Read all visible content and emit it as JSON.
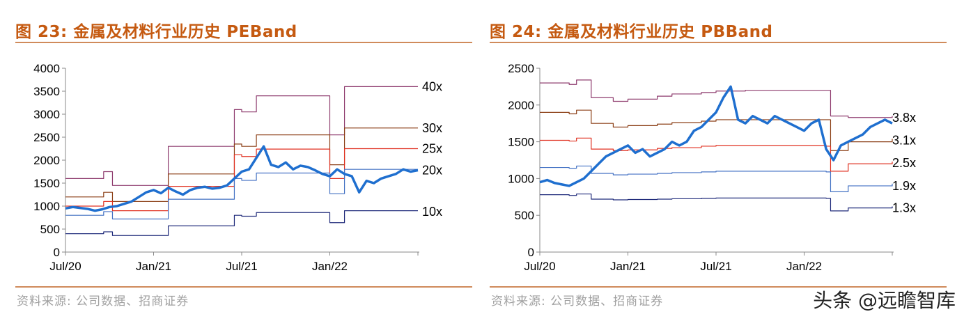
{
  "left": {
    "title": "图 23: 金属及材料行业历史 PEBand",
    "source": "资料来源: 公司数据、招商证券"
  },
  "right": {
    "title": "图 24: 金属及材料行业历史 PBBand",
    "source": "资料来源: 公司数据、招商证券"
  },
  "watermark": "头条 @远瞻智库",
  "chart_data": [
    {
      "type": "line",
      "title": "",
      "xlabel": "",
      "ylabel": "",
      "ylim": [
        0,
        4000
      ],
      "yticks": [
        0,
        500,
        1000,
        1500,
        2000,
        2500,
        3000,
        3500,
        4000
      ],
      "xticks": [
        "Jul/20",
        "Jan/21",
        "Jul/21",
        "Jan/22"
      ],
      "xlim": [
        0,
        24
      ],
      "grid": false,
      "series": [
        {
          "name": "40x",
          "color": "#8e3b6e",
          "width": 1.2,
          "x": [
            0,
            2.4,
            2.6,
            3.2,
            5.5,
            7,
            9,
            11,
            11.5,
            12,
            13,
            17.5,
            18,
            19,
            24
          ],
          "values": [
            1600,
            1600,
            1750,
            1450,
            1450,
            2300,
            2300,
            2300,
            3100,
            3050,
            3400,
            3400,
            2550,
            3600,
            3600
          ]
        },
        {
          "name": "30x",
          "color": "#8b3f16",
          "width": 1.2,
          "x": [
            0,
            2.4,
            2.6,
            3.2,
            5.5,
            7,
            9,
            11,
            11.5,
            12,
            13,
            17.5,
            18,
            19,
            24
          ],
          "values": [
            1200,
            1200,
            1300,
            1100,
            1100,
            1700,
            1700,
            1700,
            2350,
            2300,
            2550,
            2550,
            1900,
            2700,
            2700
          ]
        },
        {
          "name": "25x",
          "color": "#e03020",
          "width": 1.2,
          "x": [
            0,
            2.4,
            2.6,
            3.2,
            5.5,
            7,
            9,
            11,
            11.5,
            12,
            13,
            17.5,
            18,
            19,
            24
          ],
          "values": [
            1000,
            1000,
            1100,
            900,
            900,
            1430,
            1430,
            1430,
            2120,
            2080,
            2240,
            2240,
            1600,
            2250,
            2250
          ]
        },
        {
          "name": "20x",
          "color": "#4472c4",
          "width": 1.2,
          "x": [
            0,
            2.4,
            2.6,
            3.2,
            5.5,
            7,
            9,
            11,
            11.5,
            12,
            13,
            17.5,
            18,
            19,
            24
          ],
          "values": [
            800,
            800,
            880,
            720,
            720,
            1150,
            1150,
            1150,
            1600,
            1560,
            1720,
            1720,
            1270,
            1800,
            1800
          ]
        },
        {
          "name": "10x",
          "color": "#1f2a7a",
          "width": 1.2,
          "x": [
            0,
            2.4,
            2.6,
            3.2,
            5.5,
            7,
            9,
            11,
            11.5,
            12,
            13,
            17.5,
            18,
            19,
            24
          ],
          "values": [
            400,
            400,
            440,
            360,
            360,
            570,
            570,
            570,
            800,
            780,
            860,
            860,
            640,
            900,
            900
          ]
        },
        {
          "name": "",
          "color": "#1f6fcf",
          "width": 3.5,
          "x": [
            0,
            0.5,
            1,
            1.5,
            2,
            2.5,
            3,
            3.5,
            4,
            4.5,
            5,
            5.5,
            6,
            6.5,
            7,
            7.5,
            8,
            8.5,
            9,
            9.5,
            10,
            10.5,
            11,
            11.5,
            12,
            12.5,
            13,
            13.5,
            14,
            14.5,
            15,
            15.5,
            16,
            16.5,
            17,
            17.5,
            18,
            18.5,
            19,
            19.5,
            20,
            20.5,
            21,
            21.5,
            22,
            22.5,
            23,
            23.5,
            24
          ],
          "values": [
            950,
            980,
            960,
            940,
            900,
            930,
            980,
            1000,
            1050,
            1100,
            1200,
            1300,
            1350,
            1280,
            1400,
            1320,
            1250,
            1350,
            1400,
            1420,
            1380,
            1400,
            1450,
            1600,
            1750,
            1800,
            2050,
            2300,
            1900,
            1850,
            1950,
            1800,
            1880,
            1850,
            1780,
            1700,
            1650,
            1800,
            1700,
            1650,
            1300,
            1550,
            1500,
            1600,
            1650,
            1700,
            1800,
            1750,
            1780
          ]
        }
      ],
      "labels": [
        {
          "text": "40x",
          "y": 3600
        },
        {
          "text": "30x",
          "y": 2700
        },
        {
          "text": "25x",
          "y": 2250
        },
        {
          "text": "20x",
          "y": 1780
        },
        {
          "text": "10x",
          "y": 880
        }
      ]
    },
    {
      "type": "line",
      "title": "",
      "xlabel": "",
      "ylabel": "",
      "ylim": [
        0,
        2500
      ],
      "yticks": [
        0,
        500,
        1000,
        1500,
        2000,
        2500
      ],
      "xticks": [
        "Jul/20",
        "Jan/21",
        "Jul/21",
        "Jan/22"
      ],
      "xlim": [
        0,
        24
      ],
      "grid": false,
      "series": [
        {
          "name": "3.8x",
          "color": "#8e3b6e",
          "width": 1.2,
          "x": [
            0,
            2,
            2.5,
            3.5,
            5,
            6,
            8,
            9,
            11,
            12,
            14,
            16,
            19.5,
            19.8,
            21,
            24
          ],
          "values": [
            2300,
            2280,
            2340,
            2100,
            2050,
            2080,
            2120,
            2150,
            2170,
            2190,
            2200,
            2200,
            2200,
            1850,
            1830,
            1850
          ]
        },
        {
          "name": "3.1x",
          "color": "#8b3f16",
          "width": 1.2,
          "x": [
            0,
            2,
            2.5,
            3.5,
            5,
            6,
            8,
            9,
            11,
            12,
            14,
            16,
            19.5,
            19.8,
            21,
            24
          ],
          "values": [
            1900,
            1880,
            1930,
            1750,
            1700,
            1720,
            1740,
            1760,
            1780,
            1800,
            1800,
            1800,
            1800,
            1380,
            1500,
            1540
          ]
        },
        {
          "name": "2.5x",
          "color": "#e03020",
          "width": 1.2,
          "x": [
            0,
            2,
            2.5,
            3.5,
            5,
            6,
            8,
            9,
            11,
            12,
            14,
            16,
            19.5,
            19.8,
            21,
            24
          ],
          "values": [
            1520,
            1510,
            1550,
            1400,
            1380,
            1390,
            1410,
            1420,
            1440,
            1450,
            1450,
            1450,
            1440,
            1100,
            1200,
            1230
          ]
        },
        {
          "name": "1.9x",
          "color": "#4472c4",
          "width": 1.2,
          "x": [
            0,
            2,
            2.5,
            3.5,
            5,
            6,
            8,
            9,
            11,
            12,
            14,
            16,
            19.5,
            19.8,
            21,
            24
          ],
          "values": [
            1150,
            1140,
            1170,
            1070,
            1050,
            1060,
            1070,
            1080,
            1090,
            1100,
            1100,
            1100,
            1090,
            820,
            900,
            930
          ]
        },
        {
          "name": "1.3x",
          "color": "#1f2a7a",
          "width": 1.2,
          "x": [
            0,
            2,
            2.5,
            3.5,
            5,
            6,
            8,
            9,
            11,
            12,
            14,
            16,
            19.5,
            19.8,
            21,
            24
          ],
          "values": [
            780,
            770,
            790,
            720,
            710,
            715,
            720,
            725,
            730,
            735,
            735,
            735,
            730,
            560,
            600,
            620
          ]
        },
        {
          "name": "",
          "color": "#1f6fcf",
          "width": 3.5,
          "x": [
            0,
            0.5,
            1,
            1.5,
            2,
            2.5,
            3,
            3.5,
            4,
            4.5,
            5,
            5.5,
            6,
            6.5,
            7,
            7.5,
            8,
            8.5,
            9,
            9.5,
            10,
            10.5,
            11,
            11.5,
            12,
            12.5,
            13,
            13.5,
            14,
            14.5,
            15,
            15.5,
            16,
            16.5,
            17,
            17.5,
            18,
            18.5,
            19,
            19.5,
            20,
            20.5,
            21,
            21.5,
            22,
            22.5,
            23,
            23.5,
            24
          ],
          "values": [
            950,
            980,
            940,
            920,
            900,
            950,
            1000,
            1100,
            1200,
            1300,
            1350,
            1400,
            1450,
            1350,
            1400,
            1300,
            1350,
            1400,
            1500,
            1450,
            1500,
            1650,
            1700,
            1800,
            1900,
            2100,
            2250,
            1800,
            1750,
            1850,
            1800,
            1750,
            1850,
            1800,
            1750,
            1700,
            1650,
            1750,
            1800,
            1400,
            1250,
            1450,
            1500,
            1550,
            1600,
            1700,
            1750,
            1800,
            1750
          ]
        }
      ],
      "labels": [
        {
          "text": "3.8x",
          "y": 1830
        },
        {
          "text": "3.1x",
          "y": 1520
        },
        {
          "text": "2.5x",
          "y": 1210
        },
        {
          "text": "1.9x",
          "y": 900
        },
        {
          "text": "1.3x",
          "y": 600
        }
      ]
    }
  ]
}
